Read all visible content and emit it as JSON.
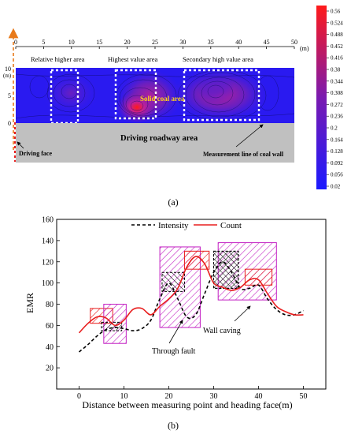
{
  "panel_a": {
    "label": "(a)",
    "x_ticks": [
      "0",
      "5",
      "10",
      "15",
      "20",
      "25",
      "30",
      "35",
      "40",
      "45",
      "50"
    ],
    "x_unit": "(m)",
    "y_ticks": [
      "10",
      "5",
      "0"
    ],
    "y_unit": "(m)",
    "areas": [
      "Relative higher area",
      "Highest value area",
      "Secondary high value area"
    ],
    "solid_coal_label": "Solid coal area",
    "roadway_label": "Driving roadway area",
    "driving_face_label": "Driving face",
    "measurement_line_label": "Measurement line of coal wall",
    "colorbar": {
      "ticks": [
        "0.56",
        "0.524",
        "0.488",
        "0.452",
        "0.416",
        "0.38",
        "0.344",
        "0.308",
        "0.272",
        "0.236",
        "0.2",
        "0.164",
        "0.128",
        "0.092",
        "0.056",
        "0.02"
      ],
      "colors": {
        "low": "#1a1aff",
        "mid": "#7a1ab0",
        "high": "#ff1a1a"
      }
    }
  },
  "panel_b": {
    "label": "(b)",
    "annotations": {
      "through_fault": "Through fault",
      "wall_caving": "Wall caving"
    },
    "colors": {
      "intensity": "#000000",
      "count": "#e81e1e",
      "box_magenta": "#c21ec2",
      "box_red": "#e81e1e",
      "box_black": "#000000"
    }
  },
  "chart_data": {
    "type": "line",
    "xlabel": "Distance between measuring point and heading face(m)",
    "ylabel": "EMR",
    "xlim": [
      -5,
      55
    ],
    "ylim": [
      0,
      160
    ],
    "x_ticks": [
      0,
      10,
      20,
      30,
      40,
      50
    ],
    "y_ticks": [
      20,
      40,
      60,
      80,
      100,
      120,
      140,
      160
    ],
    "legend_position": "top",
    "series": [
      {
        "name": "Intensity",
        "style": "dashed",
        "x": [
          0,
          2,
          4,
          6,
          8,
          10,
          12,
          14,
          16,
          18,
          20,
          22,
          24,
          26,
          28,
          30,
          32,
          34,
          36,
          38,
          40,
          42,
          44,
          46,
          48,
          50
        ],
        "y": [
          35,
          42,
          50,
          56,
          58,
          57,
          55,
          57,
          65,
          85,
          100,
          85,
          68,
          70,
          90,
          110,
          120,
          110,
          95,
          95,
          98,
          85,
          75,
          70,
          70,
          74
        ]
      },
      {
        "name": "Count",
        "style": "solid",
        "x": [
          0,
          2,
          4,
          6,
          8,
          10,
          12,
          14,
          16,
          18,
          20,
          22,
          24,
          26,
          28,
          30,
          32,
          34,
          36,
          38,
          40,
          42,
          44,
          46,
          48,
          50
        ],
        "y": [
          53,
          62,
          68,
          67,
          60,
          65,
          75,
          76,
          70,
          78,
          85,
          95,
          115,
          125,
          118,
          100,
          96,
          93,
          96,
          103,
          103,
          90,
          78,
          73,
          70,
          70
        ]
      }
    ]
  }
}
